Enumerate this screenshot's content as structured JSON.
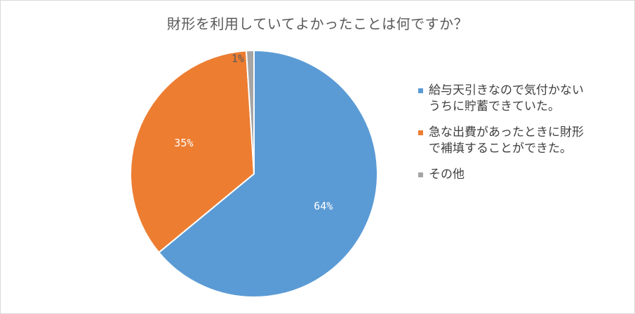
{
  "chart_data": {
    "type": "pie",
    "title": "財形を利用していてよかったことは何ですか？",
    "slices": [
      {
        "label": "給与天引きなので気付かない\nうちに貯蓄できていた。",
        "value": 64,
        "display": "64%",
        "color": "#5b9bd5"
      },
      {
        "label": "急な出費があったときに財形\nで補填することができた。",
        "value": 35,
        "display": "35%",
        "color": "#ed7d31"
      },
      {
        "label": "その他",
        "value": 1,
        "display": "1%",
        "color": "#a5a5a5"
      }
    ],
    "legend_position": "right",
    "start_angle": "12 o'clock",
    "direction": "clockwise"
  }
}
